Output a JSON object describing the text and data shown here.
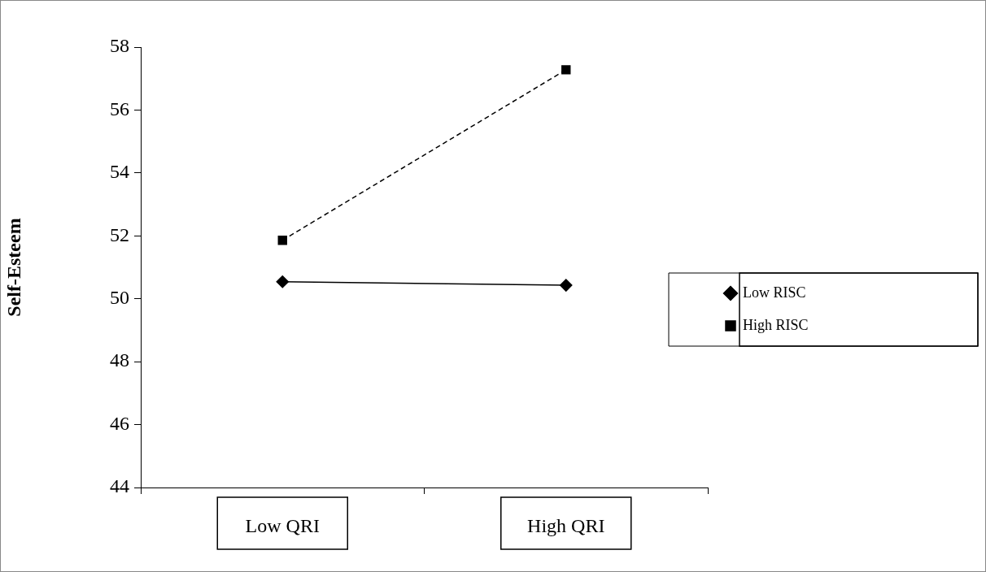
{
  "chart_data": {
    "type": "line",
    "ylabel": "Self-Esteem",
    "categories": [
      "Low QRI",
      "High QRI"
    ],
    "series": [
      {
        "name": "Low RISC",
        "color": "#000000",
        "values": [
          50.54,
          50.43
        ],
        "marker": "diamond",
        "line_style": "solid"
      },
      {
        "name": "High RISC",
        "color": "#000000",
        "values": [
          51.86,
          57.28
        ],
        "marker": "square",
        "line_style": "dashed"
      }
    ],
    "ylim": [
      44,
      58
    ],
    "yticks": [
      44,
      46,
      48,
      50,
      52,
      54,
      56,
      58
    ],
    "grid": false,
    "legend": "right"
  }
}
